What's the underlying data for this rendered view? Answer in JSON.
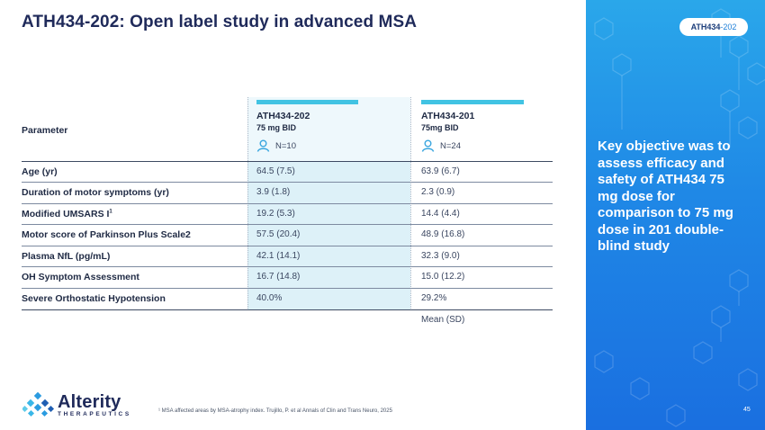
{
  "slide": {
    "title": "ATH434-202: Open label study in advanced MSA",
    "page_number": "45",
    "tag": {
      "bold": "ATH434",
      "suffix": "-202"
    }
  },
  "side_panel": {
    "text": "Key objective was to assess efficacy and safety of ATH434 75 mg dose for comparison to 75 mg dose in 201 double-blind study"
  },
  "table": {
    "param_header": "Parameter",
    "columns": [
      {
        "name": "ATH434-202",
        "dose": "75 mg BID",
        "n": "N=10"
      },
      {
        "name": "ATH434-201",
        "dose": "75mg BID",
        "n": "N=24"
      }
    ],
    "rows": [
      {
        "label": "Age (yr)",
        "a": "64.5 (7.5)",
        "b": "63.9 (6.7)"
      },
      {
        "label": "Duration of motor symptoms (yr)",
        "a": "3.9 (1.8)",
        "b": "2.3 (0.9)"
      },
      {
        "label": "Modified UMSARS I",
        "label_sup": "1",
        "a": "19.2 (5.3)",
        "b": "14.4 (4.4)"
      },
      {
        "label": "Motor score of Parkinson Plus Scale2",
        "a": "57.5 (20.4)",
        "b": "48.9 (16.8)"
      },
      {
        "label": "Plasma NfL (pg/mL)",
        "a": "42.1 (14.1)",
        "b": "32.3 (9.0)"
      },
      {
        "label": "OH Symptom Assessment",
        "a": "16.7 (14.8)",
        "b": "15.0 (12.2)"
      },
      {
        "label": "Severe Orthostatic Hypotension",
        "a": "40.0%",
        "b": "29.2%"
      }
    ],
    "note": "Mean (SD)"
  },
  "footer": {
    "logo_name": "Alterity",
    "logo_sub": "THERAPEUTICS",
    "footnote": "¹ MSA affected areas by MSA-atrophy index. Trujillo, P. et al Annals of Clin and Trans Neuro, 2025"
  },
  "colors": {
    "accent_bar": "#41c3e3",
    "panel": "#1f88e6",
    "highlight_column": "#ddf1f8",
    "title": "#1f2a5a"
  }
}
